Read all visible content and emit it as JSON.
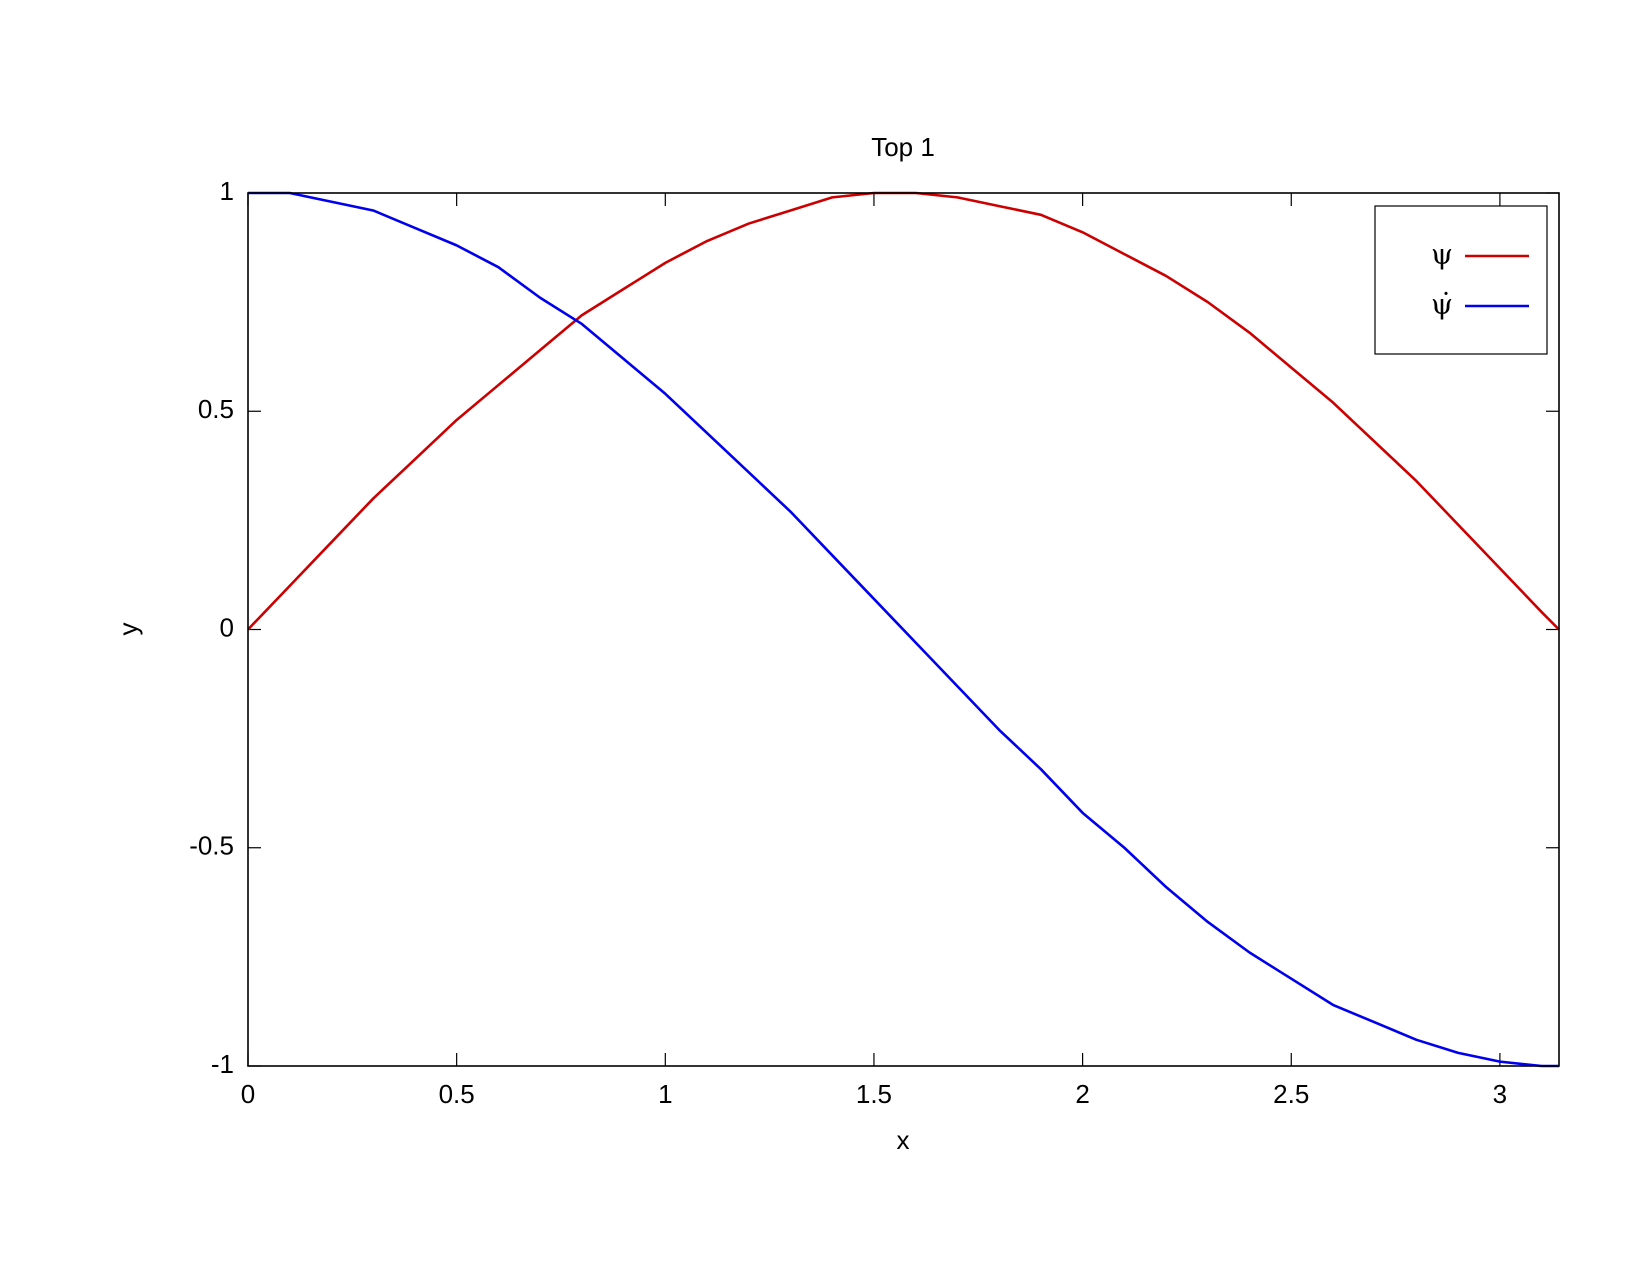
{
  "chart_data": {
    "type": "line",
    "title": "Top 1",
    "x_label": "x",
    "y_label": "y",
    "x": [
      0,
      0.1,
      0.2,
      0.3,
      0.4,
      0.5,
      0.6,
      0.7,
      0.8,
      0.9,
      1.0,
      1.1,
      1.2,
      1.3,
      1.4,
      1.5,
      1.6,
      1.7,
      1.8,
      1.9,
      2.0,
      2.1,
      2.2,
      2.3,
      2.4,
      2.5,
      2.6,
      2.7,
      2.8,
      2.9,
      3.0,
      3.1,
      3.1416
    ],
    "series": [
      {
        "name": "ψ",
        "color": "#cc0000",
        "values": [
          0,
          0.1,
          0.2,
          0.3,
          0.39,
          0.48,
          0.56,
          0.64,
          0.72,
          0.78,
          0.84,
          0.89,
          0.93,
          0.96,
          0.99,
          1.0,
          1.0,
          0.99,
          0.97,
          0.95,
          0.91,
          0.86,
          0.81,
          0.75,
          0.68,
          0.6,
          0.52,
          0.43,
          0.34,
          0.24,
          0.14,
          0.04,
          0
        ]
      },
      {
        "name": "ψ̇",
        "color": "#0000ee",
        "values": [
          1,
          1.0,
          0.98,
          0.96,
          0.92,
          0.88,
          0.83,
          0.76,
          0.7,
          0.62,
          0.54,
          0.45,
          0.36,
          0.27,
          0.17,
          0.07,
          -0.03,
          -0.13,
          -0.23,
          -0.32,
          -0.42,
          -0.5,
          -0.59,
          -0.67,
          -0.74,
          -0.8,
          -0.86,
          -0.9,
          -0.94,
          -0.97,
          -0.99,
          -1.0,
          -1
        ]
      }
    ],
    "xlim": [
      0,
      3.1416
    ],
    "ylim": [
      -1,
      1
    ],
    "xticks": [
      0,
      0.5,
      1,
      1.5,
      2,
      2.5,
      3
    ],
    "yticks": [
      -1,
      -0.5,
      0,
      0.5,
      1
    ],
    "grid": false,
    "legend": "upper right"
  }
}
